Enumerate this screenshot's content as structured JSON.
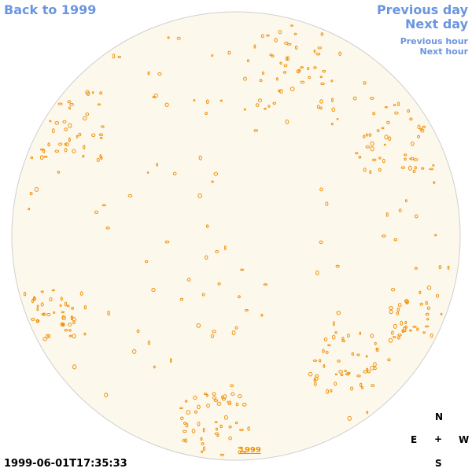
{
  "nav": {
    "back": "Back to 1999",
    "previous_day": "Previous day",
    "next_day": "Next day",
    "previous_hour": "Previous hour",
    "next_hour": "Next hour"
  },
  "compass": {
    "north": "N",
    "east": "E",
    "center": "+",
    "west": "W",
    "south": "S"
  },
  "timestamp": "1999-06-01T17:35:33",
  "year_link": "1999"
}
